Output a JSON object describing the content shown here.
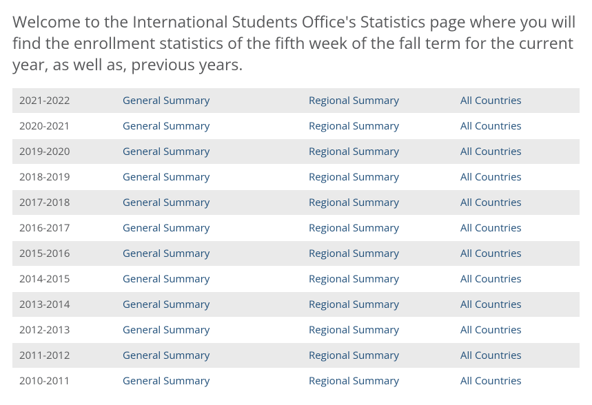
{
  "heading": "Welcome to the International Students Office's Statistics page where you will find the enrollment statistics of the fifth week of the fall term for the current year, as well as, previous years.",
  "link_labels": {
    "general": "General Summary",
    "regional": "Regional Summary",
    "countries": "All Countries"
  },
  "colors": {
    "heading_text": "#58595b",
    "link_text": "#1f4e79",
    "row_odd_bg": "#eaeaea",
    "row_even_bg": "#ffffff",
    "year_text": "#58595b"
  },
  "table": {
    "columns": [
      "year",
      "general",
      "regional",
      "countries"
    ],
    "rows": [
      {
        "year": "2021-2022"
      },
      {
        "year": "2020-2021"
      },
      {
        "year": "2019-2020"
      },
      {
        "year": "2018-2019"
      },
      {
        "year": "2017-2018"
      },
      {
        "year": "2016-2017"
      },
      {
        "year": "2015-2016"
      },
      {
        "year": "2014-2015"
      },
      {
        "year": "2013-2014"
      },
      {
        "year": "2012-2013"
      },
      {
        "year": "2011-2012"
      },
      {
        "year": "2010-2011"
      }
    ]
  }
}
